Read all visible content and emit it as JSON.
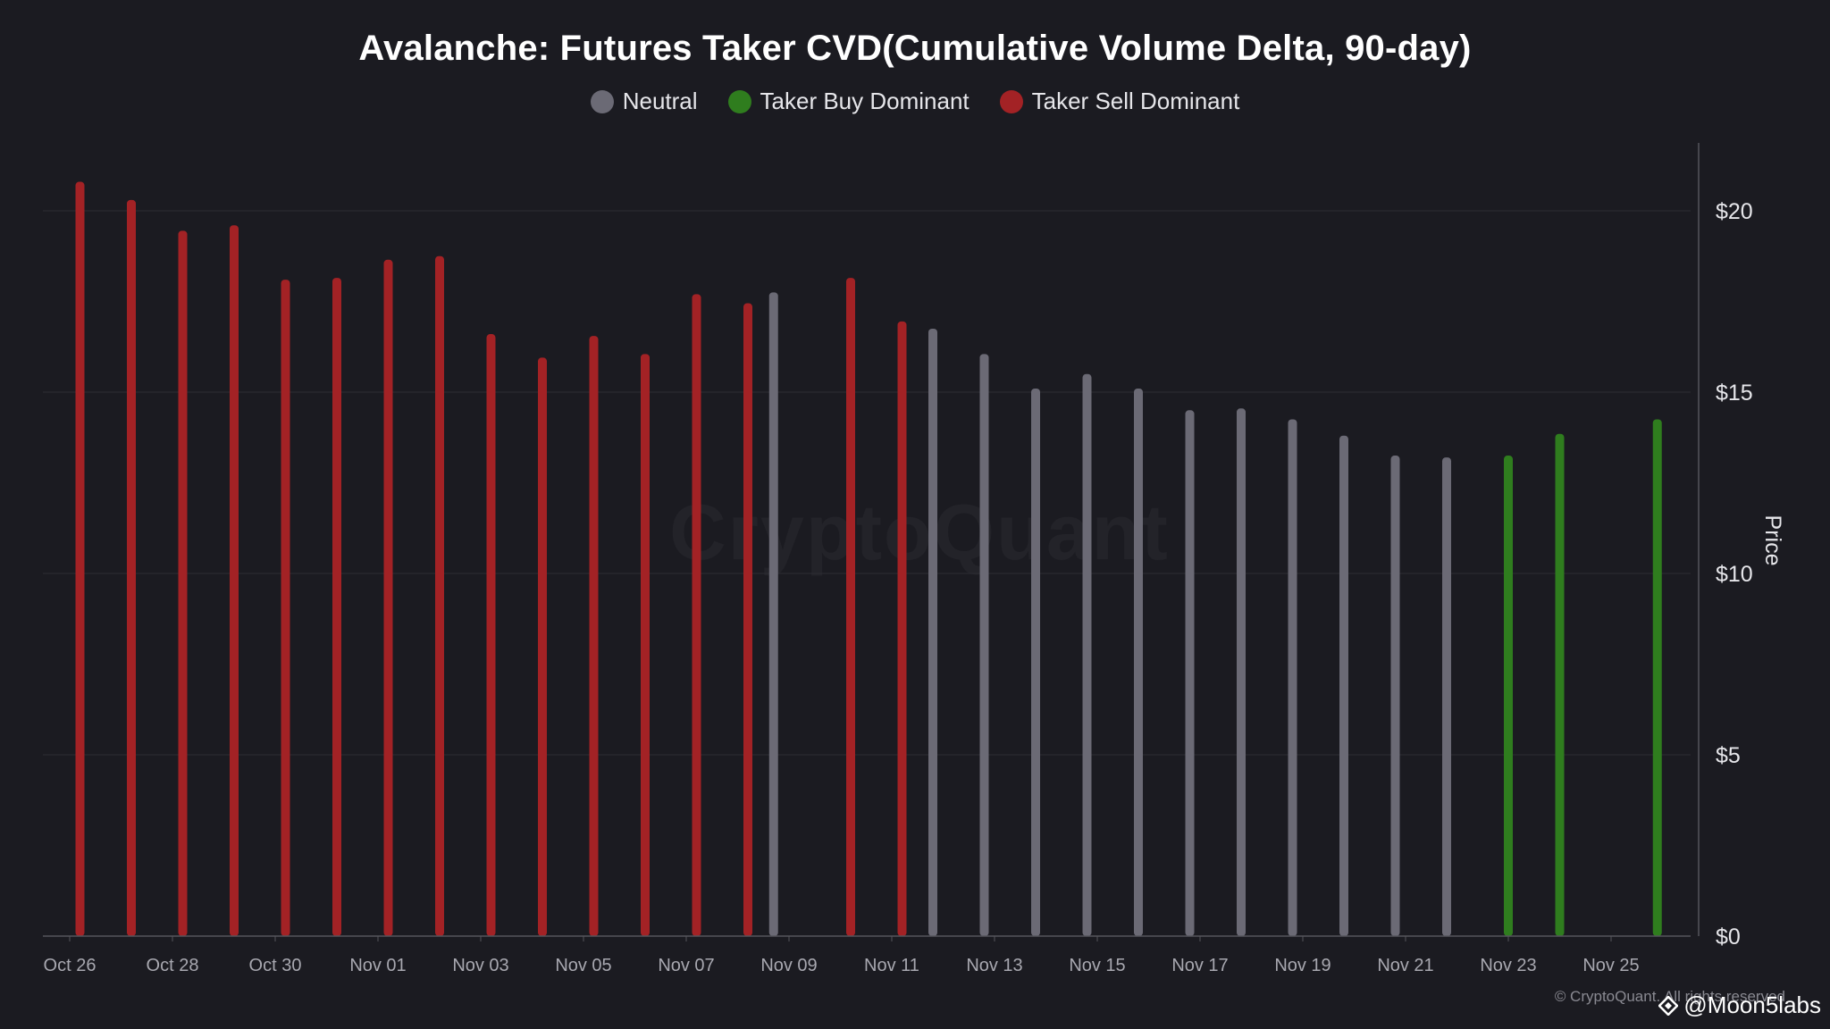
{
  "chart_data": {
    "type": "bar",
    "title": "Avalanche: Futures Taker CVD(Cumulative Volume Delta, 90-day)",
    "ylabel": "Price",
    "xlabel": "",
    "ylim": [
      0,
      22
    ],
    "yticks": [
      0,
      5,
      10,
      15,
      20
    ],
    "ytick_labels": [
      "$0",
      "$5",
      "$10",
      "$15",
      "$20"
    ],
    "x_start": "Oct 26",
    "xtick_labels": [
      "Oct 26",
      "Oct 28",
      "Oct 30",
      "Nov 01",
      "Nov 03",
      "Nov 05",
      "Nov 07",
      "Nov 09",
      "Nov 11",
      "Nov 13",
      "Nov 15",
      "Nov 17",
      "Nov 19",
      "Nov 21",
      "Nov 23",
      "Nov 25"
    ],
    "xtick_day_index": [
      0,
      2,
      4,
      6,
      8,
      10,
      12,
      14,
      16,
      18,
      20,
      22,
      24,
      26,
      28,
      30
    ],
    "grid": true,
    "legend_placement": "top-center",
    "categories_legend": [
      {
        "key": "neutral",
        "label": "Neutral",
        "color": "#6b6a75"
      },
      {
        "key": "buy",
        "label": "Taker Buy Dominant",
        "color": "#2f7d1e"
      },
      {
        "key": "sell",
        "label": "Taker Sell Dominant",
        "color": "#a32225"
      }
    ],
    "bars": [
      {
        "day": 0.2,
        "value": 20.8,
        "category": "sell"
      },
      {
        "day": 1.2,
        "value": 20.3,
        "category": "sell"
      },
      {
        "day": 2.2,
        "value": 19.45,
        "category": "sell"
      },
      {
        "day": 3.2,
        "value": 19.6,
        "category": "sell"
      },
      {
        "day": 4.2,
        "value": 18.1,
        "category": "sell"
      },
      {
        "day": 5.2,
        "value": 18.15,
        "category": "sell"
      },
      {
        "day": 6.2,
        "value": 18.65,
        "category": "sell"
      },
      {
        "day": 7.2,
        "value": 18.75,
        "category": "sell"
      },
      {
        "day": 8.2,
        "value": 16.6,
        "category": "sell"
      },
      {
        "day": 9.2,
        "value": 15.95,
        "category": "sell"
      },
      {
        "day": 10.2,
        "value": 16.55,
        "category": "sell"
      },
      {
        "day": 11.2,
        "value": 16.05,
        "category": "sell"
      },
      {
        "day": 12.2,
        "value": 17.7,
        "category": "sell"
      },
      {
        "day": 13.2,
        "value": 17.45,
        "category": "sell"
      },
      {
        "day": 13.7,
        "value": 17.75,
        "category": "neutral"
      },
      {
        "day": 15.2,
        "value": 18.15,
        "category": "sell"
      },
      {
        "day": 16.2,
        "value": 16.95,
        "category": "sell"
      },
      {
        "day": 16.8,
        "value": 16.75,
        "category": "neutral"
      },
      {
        "day": 17.8,
        "value": 16.05,
        "category": "neutral"
      },
      {
        "day": 18.8,
        "value": 15.1,
        "category": "neutral"
      },
      {
        "day": 19.8,
        "value": 15.5,
        "category": "neutral"
      },
      {
        "day": 20.8,
        "value": 15.1,
        "category": "neutral"
      },
      {
        "day": 21.8,
        "value": 14.5,
        "category": "neutral"
      },
      {
        "day": 22.8,
        "value": 14.55,
        "category": "neutral"
      },
      {
        "day": 23.8,
        "value": 14.25,
        "category": "neutral"
      },
      {
        "day": 24.8,
        "value": 13.8,
        "category": "neutral"
      },
      {
        "day": 25.8,
        "value": 13.25,
        "category": "neutral"
      },
      {
        "day": 26.8,
        "value": 13.2,
        "category": "neutral"
      },
      {
        "day": 28.0,
        "value": 13.25,
        "category": "buy"
      },
      {
        "day": 29.0,
        "value": 13.85,
        "category": "buy"
      },
      {
        "day": 30.9,
        "value": 14.25,
        "category": "buy"
      }
    ]
  },
  "watermark": "CryptoQuant",
  "copyright": "© CryptoQuant. All rights reserved",
  "credit": "@Moon5labs",
  "colors": {
    "background": "#1b1b21",
    "grid": "#2c2c34",
    "axis": "#55555c"
  }
}
